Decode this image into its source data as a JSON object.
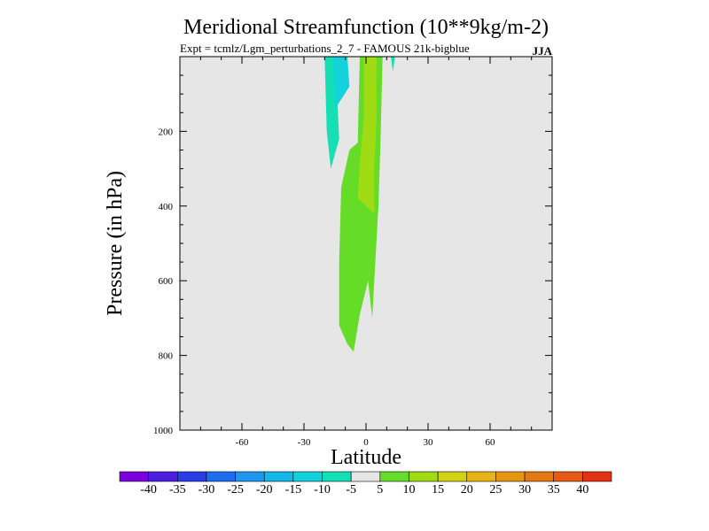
{
  "chart_data": {
    "type": "contour",
    "title": "Meridional Streamfunction (10**9kg/m-2)",
    "subtitle_left": "Expt = tcmlz/Lgm_perturbations_2_7 - FAMOUS 21k-bigblue",
    "subtitle_right": "JJA",
    "xlabel": "Latitude",
    "ylabel": "Pressure (in hPa)",
    "xlim": [
      -90,
      90
    ],
    "ylim": [
      1000,
      0
    ],
    "xticks": [
      -60,
      -30,
      0,
      30,
      60
    ],
    "xtick_labels": [
      "-60",
      "-30",
      "0",
      "30",
      "60"
    ],
    "yticks": [
      200,
      400,
      600,
      800,
      1000
    ],
    "ytick_labels": [
      "200",
      "400",
      "600",
      "800",
      "1000"
    ],
    "background_color": "#e6e6e6",
    "colorbar": {
      "colors": [
        "#7a00dc",
        "#4b1ee0",
        "#2a3ce6",
        "#1e6cf0",
        "#1e96f0",
        "#14b8e8",
        "#14d2dc",
        "#14e0b4",
        "#e6e6e6",
        "#64dc28",
        "#a0dc14",
        "#d2d214",
        "#e6b414",
        "#e69614",
        "#e67814",
        "#e65a14",
        "#e63214"
      ],
      "labels": [
        "-40",
        "-35",
        "-30",
        "-25",
        "-20",
        "-15",
        "-10",
        "-5",
        "5",
        "10",
        "15",
        "20",
        "25",
        "30",
        "35",
        "40"
      ]
    },
    "regions": [
      {
        "name": "negative-cell-nh-edge",
        "color": "#14e0b4",
        "points": [
          [
            -20,
            0
          ],
          [
            -16,
            0
          ],
          [
            -14,
            100
          ],
          [
            -13,
            220
          ],
          [
            -17,
            300
          ],
          [
            -19,
            200
          ]
        ]
      },
      {
        "name": "negative-cell-core",
        "color": "#14d2dc",
        "points": [
          [
            -16,
            0
          ],
          [
            -9,
            0
          ],
          [
            -8,
            80
          ],
          [
            -15,
            140
          ]
        ]
      },
      {
        "name": "negative-cell-sliver",
        "color": "#14e0b4",
        "points": [
          [
            12,
            0
          ],
          [
            14,
            0
          ],
          [
            13,
            40
          ]
        ]
      },
      {
        "name": "positive-cell-outer",
        "color": "#64dc28",
        "points": [
          [
            -3,
            0
          ],
          [
            8,
            0
          ],
          [
            7,
            230
          ],
          [
            6,
            400
          ],
          [
            3,
            700
          ],
          [
            1,
            600
          ],
          [
            -3,
            690
          ],
          [
            -6,
            790
          ],
          [
            -9,
            770
          ],
          [
            -13,
            720
          ],
          [
            -13,
            550
          ],
          [
            -12,
            350
          ],
          [
            -8,
            250
          ],
          [
            -4,
            230
          ]
        ]
      },
      {
        "name": "positive-cell-inner",
        "color": "#a0dc14",
        "points": [
          [
            -1,
            0
          ],
          [
            5,
            0
          ],
          [
            5,
            170
          ],
          [
            4,
            300
          ],
          [
            4,
            420
          ],
          [
            -4,
            380
          ],
          [
            -3,
            280
          ],
          [
            -1,
            170
          ]
        ]
      }
    ]
  }
}
